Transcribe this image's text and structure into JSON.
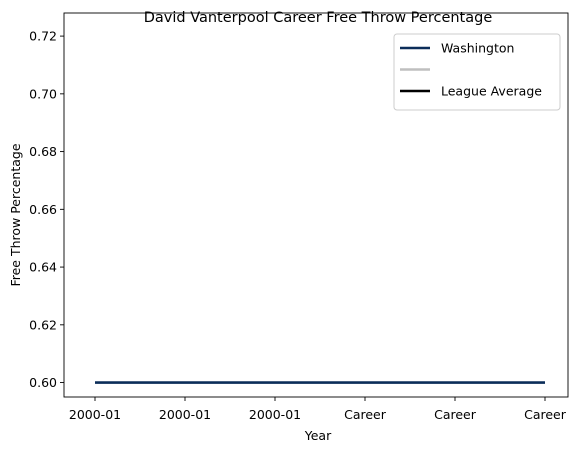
{
  "chart_data": {
    "type": "line",
    "title": "David Vanterpool Career Free Throw Percentage",
    "xlabel": "Year",
    "ylabel": "Free Throw Percentage",
    "categories": [
      "2000-01",
      "2000-01",
      "2000-01",
      "Career",
      "Career",
      "Career"
    ],
    "yticks": [
      "0.60",
      "0.62",
      "0.64",
      "0.66",
      "0.68",
      "0.70",
      "0.72"
    ],
    "ylim": [
      0.595,
      0.728
    ],
    "grid": false,
    "legend_position": "top-right",
    "series": [
      {
        "name": "Washington",
        "color": "#0b2d59",
        "values": [
          0.6,
          0.6,
          0.6,
          0.6,
          0.6,
          0.6
        ]
      }
    ],
    "legend": [
      {
        "label": "Washington",
        "color": "#0b2d59"
      },
      {
        "label": "",
        "color": "#bfbfbf"
      },
      {
        "label": "League Average",
        "color": "#000000"
      }
    ]
  }
}
